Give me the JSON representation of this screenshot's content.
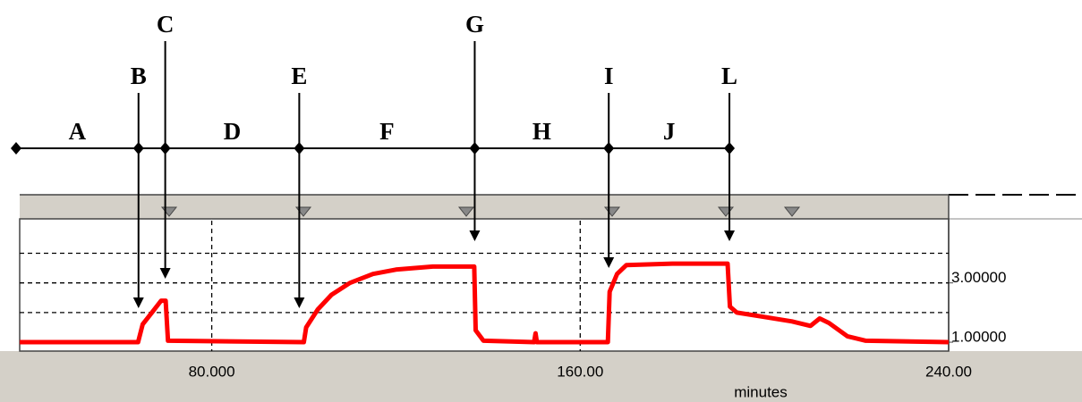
{
  "chart_data": {
    "type": "line",
    "x": [
      38.3,
      64,
      65,
      67,
      69,
      70,
      70.5,
      100,
      100.5,
      103,
      106,
      110,
      115,
      120,
      128,
      137,
      137.3,
      139,
      150,
      150.3,
      150.6,
      166,
      166.4,
      168,
      170,
      180,
      192,
      192.5,
      194,
      200,
      206,
      210,
      212,
      214,
      218,
      222,
      240
    ],
    "series": [
      {
        "color": "#ff0000",
        "values": [
          1.0,
          1.0,
          1.6,
          2.0,
          2.4,
          2.4,
          1.05,
          1.0,
          1.5,
          2.1,
          2.6,
          3.0,
          3.3,
          3.45,
          3.55,
          3.55,
          1.4,
          1.05,
          1.0,
          1.3,
          1.0,
          1.0,
          2.7,
          3.3,
          3.6,
          3.65,
          3.65,
          2.2,
          2.0,
          1.85,
          1.7,
          1.55,
          1.8,
          1.65,
          1.2,
          1.05,
          1.0
        ]
      }
    ],
    "xlim": [
      38.3,
      240
    ],
    "ylim": [
      0.7,
      5.1
    ],
    "xticks": [
      {
        "value": 80,
        "label": "80.000"
      },
      {
        "value": 160,
        "label": "160.00"
      },
      {
        "value": 240,
        "label": "240.00"
      }
    ],
    "yticks": [
      {
        "value": 3,
        "label": "3.00000"
      },
      {
        "value": 1,
        "label": "1.00000"
      }
    ],
    "ygrid": [
      2,
      3,
      4
    ],
    "xlabel": "minutes",
    "annotations": {
      "markers": [
        {
          "label": "B",
          "x": 64.1
        },
        {
          "label": "C",
          "x": 69.9
        },
        {
          "label": "E",
          "x": 99
        },
        {
          "label": "G",
          "x": 137.1
        },
        {
          "label": "I",
          "x": 166.2
        },
        {
          "label": "L",
          "x": 192.4
        }
      ],
      "spans": [
        "A",
        "D",
        "F",
        "H",
        "J"
      ]
    }
  }
}
